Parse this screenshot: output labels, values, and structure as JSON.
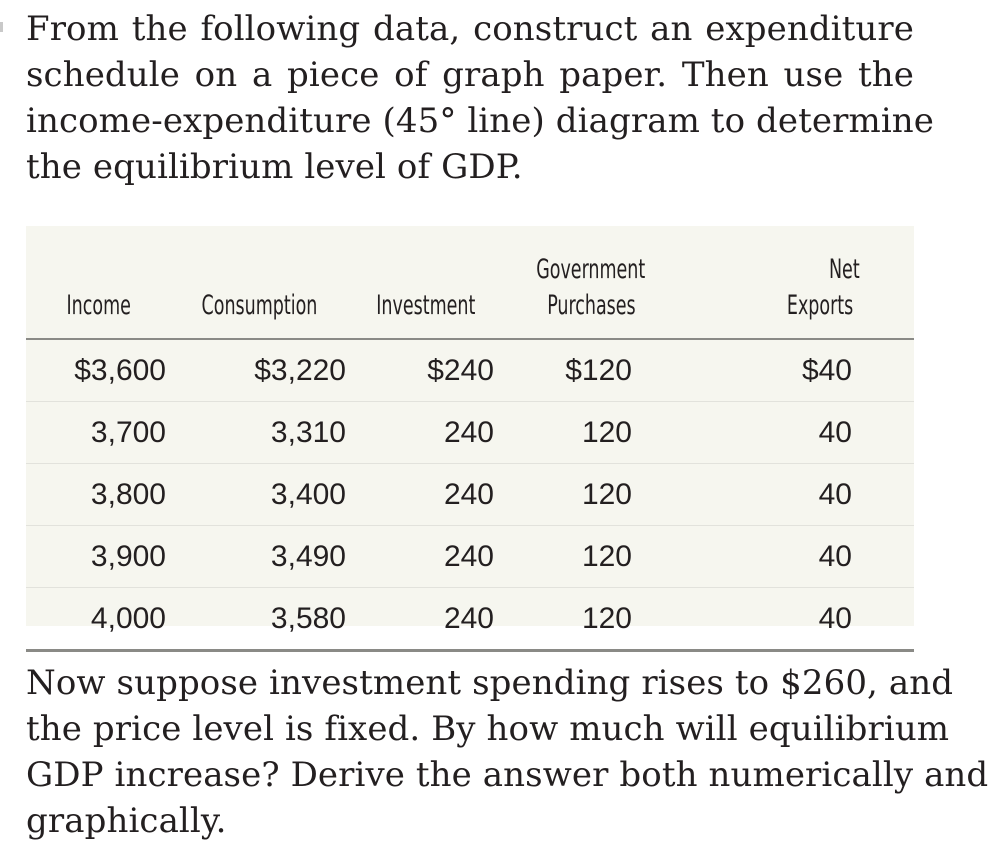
{
  "intro": {
    "lines": [
      "From the following data, construct an expenditure",
      "schedule on a piece of graph paper. Then use the",
      "income-expenditure (45° line) diagram to determine",
      "the equilibrium level of GDP."
    ]
  },
  "table": {
    "headers": {
      "income": [
        "",
        "Income"
      ],
      "consumption": [
        "",
        "Consumption"
      ],
      "investment": [
        "",
        "Investment"
      ],
      "government": [
        "Government",
        "Purchases"
      ],
      "net_exports": [
        "Net",
        "Exports"
      ]
    },
    "rows": [
      {
        "income": "$3,600",
        "consumption": "$3,220",
        "investment": "$240",
        "government": "$120",
        "net_exports": "$40"
      },
      {
        "income": "3,700",
        "consumption": "3,310",
        "investment": "240",
        "government": "120",
        "net_exports": "40"
      },
      {
        "income": "3,800",
        "consumption": "3,400",
        "investment": "240",
        "government": "120",
        "net_exports": "40"
      },
      {
        "income": "3,900",
        "consumption": "3,490",
        "investment": "240",
        "government": "120",
        "net_exports": "40"
      },
      {
        "income": "4,000",
        "consumption": "3,580",
        "investment": "240",
        "government": "120",
        "net_exports": "40"
      }
    ]
  },
  "follow_up": {
    "lines": [
      "Now suppose investment spending rises to $260, and",
      "the price level is fixed. By how much will equilibrium",
      "GDP increase? Derive the answer both numerically and",
      "graphically."
    ]
  }
}
